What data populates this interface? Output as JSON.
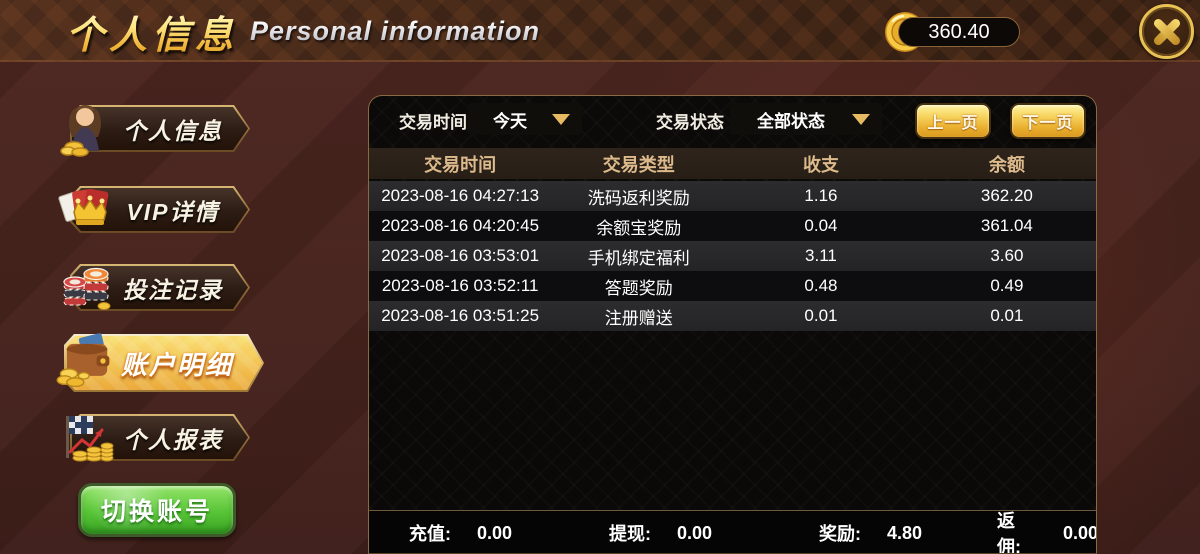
{
  "header": {
    "title_cn": "个人信息",
    "title_en": "Personal information",
    "balance": "360.40"
  },
  "sidebar": {
    "items": [
      {
        "label": "个人信息",
        "icon": "avatar-lady-icon",
        "selected": false
      },
      {
        "label": "VIP详情",
        "icon": "vip-crown-cards-icon",
        "selected": false
      },
      {
        "label": "投注记录",
        "icon": "poker-chips-icon",
        "selected": false
      },
      {
        "label": "账户明细",
        "icon": "wallet-coins-icon",
        "selected": true
      },
      {
        "label": "个人报表",
        "icon": "report-flag-coins-icon",
        "selected": false
      }
    ],
    "switch_account_label": "切换账号"
  },
  "filters": {
    "time_label": "交易时间",
    "time_value": "今天",
    "status_label": "交易状态",
    "status_value": "全部状态"
  },
  "pagination": {
    "prev_label": "上一页",
    "next_label": "下一页"
  },
  "table": {
    "headers": [
      "交易时间",
      "交易类型",
      "收支",
      "余额"
    ],
    "rows": [
      [
        "2023-08-16 04:27:13",
        "洗码返利奖励",
        "1.16",
        "362.20"
      ],
      [
        "2023-08-16 04:20:45",
        "余额宝奖励",
        "0.04",
        "361.04"
      ],
      [
        "2023-08-16 03:53:01",
        "手机绑定福利",
        "3.11",
        "3.60"
      ],
      [
        "2023-08-16 03:52:11",
        "答题奖励",
        "0.48",
        "0.49"
      ],
      [
        "2023-08-16 03:51:25",
        "注册赠送",
        "0.01",
        "0.01"
      ]
    ]
  },
  "summary": [
    {
      "label": "充值:",
      "value": "0.00"
    },
    {
      "label": "提现:",
      "value": "0.00"
    },
    {
      "label": "奖励:",
      "value": "4.80"
    },
    {
      "label": "返佣:",
      "value": "0.00"
    }
  ],
  "colors": {
    "accent_gold": "#f2c24e",
    "selected_plaque_top": "#f9e27c",
    "selected_plaque_bottom": "#e9a93c",
    "page_background": "#47231d",
    "panel_background": "#0b0a08",
    "row_odd": "#28282a",
    "row_even": "#0d0d0f",
    "header_text": "#dcba8c",
    "switch_button_green": "#57c436"
  }
}
